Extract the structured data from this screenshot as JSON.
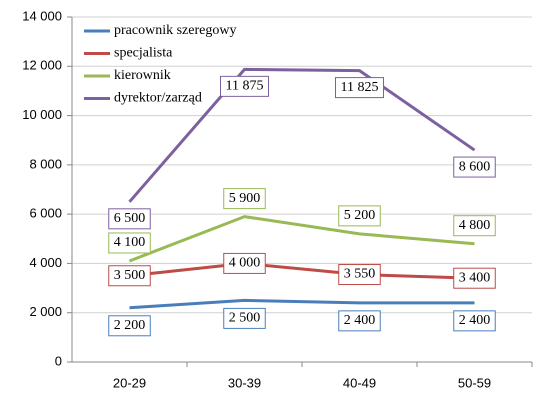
{
  "chart_data": {
    "type": "line",
    "categories": [
      "20-29",
      "30-39",
      "40-49",
      "50-59"
    ],
    "series": [
      {
        "name": "pracownik szeregowy",
        "color": "#4a7ebb",
        "values": [
          2200,
          2500,
          2400,
          2400
        ],
        "value_labels": [
          "2 200",
          "2 500",
          "2 400",
          "2 400"
        ]
      },
      {
        "name": "specjalista",
        "color": "#be4b48",
        "values": [
          3500,
          4000,
          3550,
          3400
        ],
        "value_labels": [
          "3 500",
          "4 000",
          "3 550",
          "3 400"
        ]
      },
      {
        "name": "kierownik",
        "color": "#98b954",
        "values": [
          4100,
          5900,
          5200,
          4800
        ],
        "value_labels": [
          "4 100",
          "5 900",
          "5 200",
          "4 800"
        ]
      },
      {
        "name": "dyrektor/zarząd",
        "color": "#7d60a0",
        "values": [
          6500,
          11875,
          11825,
          8600
        ],
        "value_labels": [
          "6 500",
          "11 875",
          "11 825",
          "8 600"
        ]
      }
    ],
    "ylim": [
      0,
      14000
    ],
    "yticks": [
      0,
      {
        "value": 2000,
        "label": "2 000"
      },
      {
        "value": 4000,
        "label": "4 000"
      },
      {
        "value": 6000,
        "label": "6 000"
      },
      {
        "value": 8000,
        "label": "8 000"
      },
      {
        "value": 10000,
        "label": "10 000"
      },
      {
        "value": 12000,
        "label": "12 000"
      },
      {
        "value": 14000,
        "label": "14 000"
      }
    ],
    "grid": true,
    "legend": "top-left"
  }
}
